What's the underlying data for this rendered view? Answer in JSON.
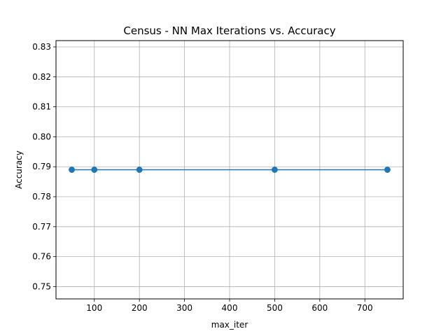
{
  "chart_data": {
    "type": "line",
    "title": "Census - NN Max Iterations vs. Accuracy",
    "xlabel": "max_iter",
    "ylabel": "Accuracy",
    "x": [
      50,
      100,
      200,
      500,
      750
    ],
    "series": [
      {
        "values": [
          0.789,
          0.789,
          0.789,
          0.789,
          0.789
        ],
        "color": "#1f77b4",
        "marker": "circle"
      }
    ],
    "xlim": [
      15,
      785
    ],
    "ylim": [
      0.7459,
      0.8321
    ],
    "xticks": [
      100,
      200,
      300,
      400,
      500,
      600,
      700
    ],
    "xtick_labels": [
      "100",
      "200",
      "300",
      "400",
      "500",
      "600",
      "700"
    ],
    "yticks": [
      0.75,
      0.76,
      0.77,
      0.78,
      0.79,
      0.8,
      0.81,
      0.82,
      0.83
    ],
    "ytick_labels": [
      "0.75",
      "0.76",
      "0.77",
      "0.78",
      "0.79",
      "0.80",
      "0.81",
      "0.82",
      "0.83"
    ],
    "grid": true,
    "grid_color": "#b0b0b0",
    "legend": false
  }
}
